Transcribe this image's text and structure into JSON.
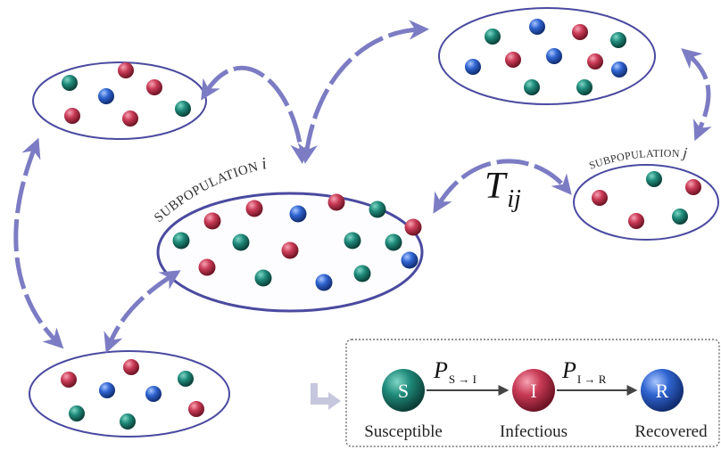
{
  "subpopulation_i": {
    "label": "SUBPOPULATION",
    "index": "i"
  },
  "subpopulation_j": {
    "label": "SUBPOPULATION",
    "index": "j"
  },
  "transfer_symbol": {
    "base": "T",
    "sub": "ij"
  },
  "model": {
    "states": [
      {
        "letter": "S",
        "name": "Susceptible",
        "color": "#1f7a6e"
      },
      {
        "letter": "I",
        "name": "Infectious",
        "color": "#c2354f"
      },
      {
        "letter": "R",
        "name": "Recovered",
        "color": "#2a5fc4"
      }
    ],
    "p_si": {
      "base": "P",
      "sub": "S → I"
    },
    "p_ir": {
      "base": "P",
      "sub": "I → R"
    }
  },
  "colors": {
    "ellipse_stroke": "#4a4aa0",
    "arrow": "#7c7cc4",
    "teal": "#1f7a6e",
    "red": "#c2354f",
    "blue": "#2a5fc4"
  }
}
